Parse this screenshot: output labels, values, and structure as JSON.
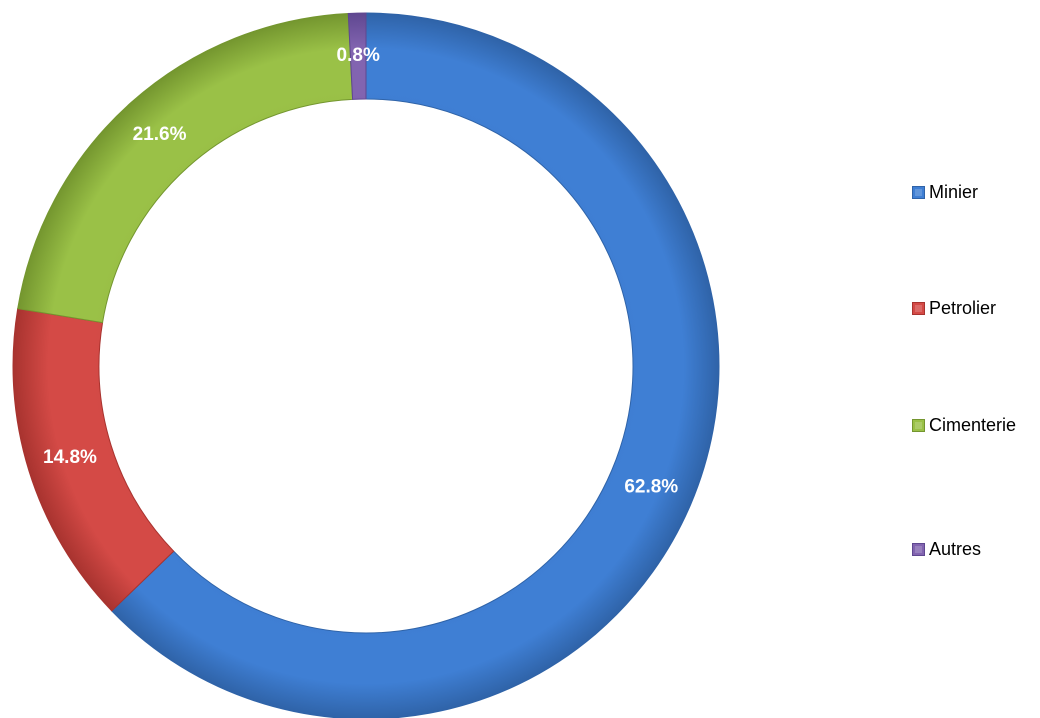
{
  "chart_data": {
    "type": "pie",
    "variant": "doughnut",
    "categories": [
      "Minier",
      "Petrolier",
      "Cimenterie",
      "Autres"
    ],
    "values": [
      62.8,
      14.8,
      21.6,
      0.8
    ],
    "value_labels": [
      "62.8%",
      "14.8%",
      "21.6%",
      "0.8%"
    ],
    "colors": [
      "#3f7fd4",
      "#d44a46",
      "#9ac147",
      "#8264b0"
    ],
    "colors_dark": [
      "#2f63a8",
      "#a8332f",
      "#74962f",
      "#5f4790"
    ],
    "legend_placement": "right",
    "title": ""
  }
}
